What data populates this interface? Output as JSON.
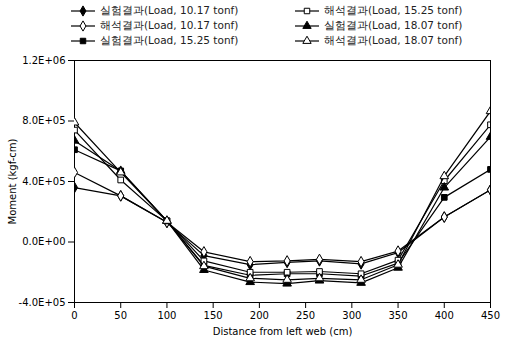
{
  "chart_data": {
    "type": "line",
    "xlabel": "Distance from left web (cm)",
    "ylabel": "Moment (kgf-cm)",
    "xlim": [
      0,
      450
    ],
    "ylim": [
      -400000,
      1200000
    ],
    "xticks": [
      0,
      50,
      100,
      150,
      200,
      250,
      300,
      350,
      400,
      450
    ],
    "yticks": [
      {
        "value": -400000,
        "label": "-4.0E+05"
      },
      {
        "value": 0,
        "label": "0.0E+00"
      },
      {
        "value": 400000,
        "label": "4.0E+05"
      },
      {
        "value": 800000,
        "label": "8.0E+05"
      },
      {
        "value": 1200000,
        "label": "1.2E+06"
      }
    ],
    "grid": false,
    "legend": "upper center",
    "x": [
      0,
      50,
      100,
      140,
      190,
      230,
      265,
      310,
      350,
      400,
      450
    ],
    "series": [
      {
        "name": "실험결과(Load, 10.17 tonf)",
        "color": "black",
        "marker": "diamond",
        "line_style": "solid",
        "values": [
          360000,
          305000,
          130000,
          -90000,
          -150000,
          -135000,
          -125000,
          -145000,
          -70000,
          165000,
          345000
        ]
      },
      {
        "name": "해석결과(Load, 10.17 tonf)",
        "color": "black",
        "marker": "diamond-open",
        "line_style": "solid",
        "values": [
          460000,
          305000,
          130000,
          -65000,
          -130000,
          -125000,
          -115000,
          -130000,
          -60000,
          165000,
          345000
        ]
      },
      {
        "name": "실험결과(Load, 15.25 tonf)",
        "color": "black",
        "marker": "square",
        "line_style": "solid",
        "values": [
          610000,
          470000,
          140000,
          -155000,
          -220000,
          -210000,
          -210000,
          -225000,
          -140000,
          295000,
          480000
        ]
      },
      {
        "name": "해석결과(Load, 15.25 tonf)",
        "color": "black",
        "marker": "square-open",
        "line_style": "solid",
        "values": [
          740000,
          410000,
          140000,
          -125000,
          -200000,
          -200000,
          -195000,
          -210000,
          -120000,
          405000,
          775000
        ]
      },
      {
        "name": "실험결과(Load, 18.07 tonf)",
        "color": "black",
        "marker": "triangle",
        "line_style": "solid",
        "values": [
          670000,
          470000,
          140000,
          -185000,
          -265000,
          -275000,
          -255000,
          -270000,
          -170000,
          360000,
          695000
        ]
      },
      {
        "name": "해석결과(Load, 18.07 tonf)",
        "color": "black",
        "marker": "triangle-open",
        "line_style": "solid",
        "values": [
          790000,
          460000,
          140000,
          -160000,
          -240000,
          -250000,
          -240000,
          -250000,
          -150000,
          435000,
          865000
        ]
      }
    ]
  }
}
